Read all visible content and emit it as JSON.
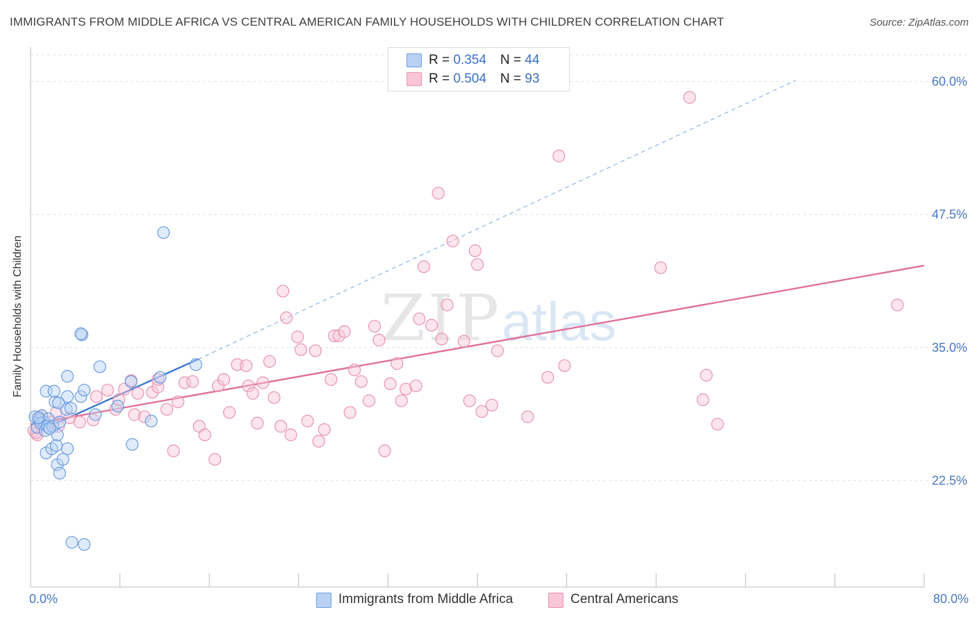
{
  "title": "IMMIGRANTS FROM MIDDLE AFRICA VS CENTRAL AMERICAN FAMILY HOUSEHOLDS WITH CHILDREN CORRELATION CHART",
  "source": "Source: ZipAtlas.com",
  "watermark": {
    "zip": "ZIP",
    "atlas": "atlas"
  },
  "legend": {
    "rows": [
      {
        "r_label": "R = ",
        "r_value": "0.354",
        "n_label": "N = ",
        "n_value": "44"
      },
      {
        "r_label": "R = ",
        "r_value": "0.504",
        "n_label": "N = ",
        "n_value": "93"
      }
    ]
  },
  "colors": {
    "blue_fill": "#b9d2f3",
    "blue_stroke": "#6a9be0",
    "blue_line": "#3a78d0",
    "pink_fill": "#f8c6d6",
    "pink_stroke": "#e693b0",
    "pink_line": "#e0709a",
    "grid": "#e2e2e2",
    "tick_label": "#4a78c4"
  },
  "chart_data": {
    "type": "scatter",
    "xlabel": "",
    "ylabel": "Family Households with Children",
    "xlim": [
      0,
      80
    ],
    "ylim": [
      12.5,
      62.5
    ],
    "x_tick_labels": [
      "0.0%",
      "80.0%"
    ],
    "y_ticks": [
      22.5,
      35.0,
      47.5,
      60.0
    ],
    "y_tick_labels": [
      "22.5%",
      "35.0%",
      "47.5%",
      "60.0%"
    ],
    "grid": true,
    "legend_placement": "top-center",
    "series": [
      {
        "name": "Immigrants from Middle Africa",
        "color": "#6a9be0",
        "trend": {
          "x0": 0,
          "y0": 26.8,
          "x1": 15,
          "y1": 33.9,
          "extend_dashed_to_x": 68.5,
          "extend_dashed_to_y": 60.1
        },
        "points": [
          [
            0.4,
            28.5
          ],
          [
            0.6,
            27.5
          ],
          [
            0.8,
            28.2
          ],
          [
            1.0,
            28.6
          ],
          [
            1.2,
            28.0
          ],
          [
            0.9,
            27.9
          ],
          [
            1.6,
            28.3
          ],
          [
            1.3,
            27.2
          ],
          [
            1.5,
            27.6
          ],
          [
            1.4,
            30.9
          ],
          [
            2.0,
            27.6
          ],
          [
            1.4,
            25.1
          ],
          [
            2.2,
            29.9
          ],
          [
            2.1,
            30.9
          ],
          [
            1.9,
            25.5
          ],
          [
            2.6,
            28.0
          ],
          [
            2.4,
            24.0
          ],
          [
            2.3,
            25.8
          ],
          [
            2.4,
            26.8
          ],
          [
            3.3,
            25.5
          ],
          [
            2.6,
            23.2
          ],
          [
            2.9,
            24.5
          ],
          [
            3.2,
            29.2
          ],
          [
            3.3,
            30.4
          ],
          [
            3.6,
            29.3
          ],
          [
            4.5,
            30.4
          ],
          [
            4.8,
            31.0
          ],
          [
            4.6,
            36.2
          ],
          [
            4.5,
            36.3
          ],
          [
            3.3,
            32.3
          ],
          [
            6.2,
            33.2
          ],
          [
            5.8,
            28.7
          ],
          [
            7.8,
            29.5
          ],
          [
            9.0,
            31.8
          ],
          [
            10.8,
            28.1
          ],
          [
            11.6,
            32.2
          ],
          [
            9.1,
            25.9
          ],
          [
            14.8,
            33.4
          ],
          [
            11.9,
            45.8
          ],
          [
            3.7,
            16.7
          ],
          [
            4.8,
            16.5
          ],
          [
            1.7,
            27.4
          ],
          [
            0.7,
            28.4
          ],
          [
            2.5,
            29.8
          ]
        ]
      },
      {
        "name": "Central Americans",
        "color": "#e693b0",
        "trend": {
          "x0": 0,
          "y0": 27.8,
          "x1": 80,
          "y1": 42.7
        },
        "points": [
          [
            0.3,
            27.2
          ],
          [
            0.6,
            26.8
          ],
          [
            0.8,
            28.4
          ],
          [
            1.0,
            28.6
          ],
          [
            1.4,
            27.8
          ],
          [
            1.8,
            28.0
          ],
          [
            2.3,
            28.9
          ],
          [
            2.5,
            27.6
          ],
          [
            3.5,
            28.4
          ],
          [
            4.4,
            28.0
          ],
          [
            5.6,
            28.2
          ],
          [
            5.9,
            30.4
          ],
          [
            6.9,
            31.0
          ],
          [
            7.6,
            29.2
          ],
          [
            7.9,
            30.1
          ],
          [
            8.4,
            31.1
          ],
          [
            9.0,
            31.9
          ],
          [
            9.3,
            28.7
          ],
          [
            9.6,
            30.7
          ],
          [
            10.2,
            28.5
          ],
          [
            10.9,
            30.8
          ],
          [
            11.4,
            31.3
          ],
          [
            11.4,
            32.0
          ],
          [
            12.2,
            29.2
          ],
          [
            12.8,
            25.3
          ],
          [
            13.2,
            29.9
          ],
          [
            13.8,
            31.7
          ],
          [
            14.5,
            31.8
          ],
          [
            15.1,
            27.6
          ],
          [
            15.6,
            26.8
          ],
          [
            16.5,
            24.5
          ],
          [
            16.8,
            31.4
          ],
          [
            17.3,
            32.0
          ],
          [
            17.8,
            28.9
          ],
          [
            18.5,
            33.4
          ],
          [
            19.3,
            33.3
          ],
          [
            19.5,
            31.4
          ],
          [
            19.9,
            30.7
          ],
          [
            20.3,
            27.9
          ],
          [
            20.8,
            31.7
          ],
          [
            21.4,
            33.7
          ],
          [
            21.8,
            30.3
          ],
          [
            22.4,
            27.6
          ],
          [
            22.6,
            40.3
          ],
          [
            22.9,
            37.8
          ],
          [
            23.3,
            26.8
          ],
          [
            23.9,
            36.0
          ],
          [
            24.2,
            34.8
          ],
          [
            24.8,
            28.1
          ],
          [
            25.5,
            34.7
          ],
          [
            25.8,
            26.2
          ],
          [
            26.3,
            27.3
          ],
          [
            26.9,
            32.0
          ],
          [
            27.2,
            36.1
          ],
          [
            27.6,
            36.1
          ],
          [
            28.1,
            36.5
          ],
          [
            28.6,
            28.9
          ],
          [
            29.0,
            32.9
          ],
          [
            29.6,
            31.8
          ],
          [
            30.3,
            30.0
          ],
          [
            30.8,
            37.0
          ],
          [
            31.2,
            35.7
          ],
          [
            31.7,
            25.3
          ],
          [
            32.2,
            31.6
          ],
          [
            32.8,
            33.5
          ],
          [
            33.2,
            30.0
          ],
          [
            33.6,
            31.1
          ],
          [
            34.5,
            31.4
          ],
          [
            34.8,
            37.7
          ],
          [
            35.2,
            42.6
          ],
          [
            35.9,
            37.1
          ],
          [
            36.5,
            49.5
          ],
          [
            36.8,
            35.8
          ],
          [
            37.3,
            39.0
          ],
          [
            37.8,
            45.0
          ],
          [
            38.8,
            35.6
          ],
          [
            39.3,
            30.0
          ],
          [
            39.8,
            44.1
          ],
          [
            40.0,
            42.8
          ],
          [
            40.4,
            29.0
          ],
          [
            41.3,
            29.6
          ],
          [
            41.8,
            34.7
          ],
          [
            44.5,
            28.5
          ],
          [
            46.3,
            32.2
          ],
          [
            47.3,
            53.0
          ],
          [
            47.8,
            33.3
          ],
          [
            56.4,
            42.5
          ],
          [
            59.0,
            58.5
          ],
          [
            60.2,
            30.1
          ],
          [
            60.5,
            32.4
          ],
          [
            61.5,
            27.8
          ],
          [
            77.6,
            39.0
          ],
          [
            0.5,
            27.0
          ]
        ]
      }
    ]
  }
}
